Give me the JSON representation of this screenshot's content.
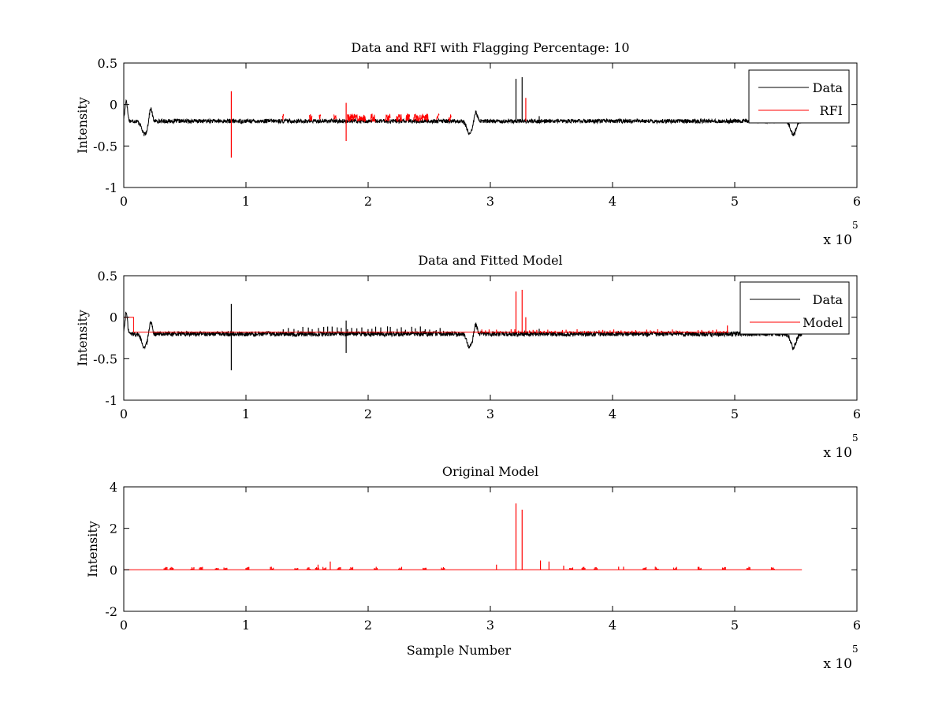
{
  "figure": {
    "background": "#ffffff",
    "colors": {
      "data": "#000000",
      "rfi": "#ff0000",
      "model": "#ff0000"
    }
  },
  "chart_data": [
    {
      "type": "line",
      "title": "Data and RFI with Flagging Percentage: 10",
      "xlabel": "",
      "ylabel": "Intensity",
      "xlim": [
        0,
        6
      ],
      "ylim": [
        -1,
        0.5
      ],
      "x_ticks": [
        "0",
        "1",
        "2",
        "3",
        "4",
        "5",
        "6"
      ],
      "y_ticks": [
        "0.5",
        "0",
        "-0.5",
        "-1"
      ],
      "x_exponent": {
        "base": "x 10",
        "power": "5"
      },
      "legend": {
        "placement": "top-right",
        "entries": [
          "Data",
          "RFI"
        ]
      },
      "grid": false,
      "series": [
        {
          "name": "Data",
          "color": "#000000",
          "baseline": -0.2,
          "noise": 0.025,
          "dips": [
            [
              0.17,
              -0.36
            ],
            [
              2.83,
              -0.35
            ],
            [
              5.48,
              -0.36
            ]
          ],
          "bumps": [
            [
              0.22,
              -0.04
            ],
            [
              2.88,
              -0.08
            ]
          ],
          "start_peak": [
            0.02,
            0.05
          ],
          "spikes": [
            [
              3.21,
              0.31
            ],
            [
              3.26,
              0.33
            ],
            [
              3.4,
              -0.14
            ]
          ],
          "x_end": 5.55
        },
        {
          "name": "RFI",
          "color": "#ff0000",
          "spikes": [
            [
              0.88,
              0.16,
              -0.64
            ],
            [
              1.82,
              0.02,
              -0.44
            ],
            [
              3.29,
              0.08,
              -0.2
            ]
          ],
          "segments": [
            [
              1.3,
              1.31
            ],
            [
              1.52,
              1.54
            ],
            [
              1.6,
              1.61
            ],
            [
              1.72,
              1.74
            ],
            [
              1.83,
              1.98
            ],
            [
              2.02,
              2.06
            ],
            [
              2.14,
              2.18
            ],
            [
              2.23,
              2.28
            ],
            [
              2.31,
              2.34
            ],
            [
              2.37,
              2.49
            ],
            [
              2.56,
              2.58
            ],
            [
              2.66,
              2.68
            ]
          ],
          "segment_level": -0.16
        }
      ]
    },
    {
      "type": "line",
      "title": "Data and Fitted Model",
      "xlabel": "",
      "ylabel": "Intensity",
      "xlim": [
        0,
        6
      ],
      "ylim": [
        -1,
        0.5
      ],
      "x_ticks": [
        "0",
        "1",
        "2",
        "3",
        "4",
        "5",
        "6"
      ],
      "y_ticks": [
        "0.5",
        "0",
        "-0.5",
        "-1"
      ],
      "x_exponent": {
        "base": "x 10",
        "power": "5"
      },
      "legend": {
        "placement": "top-right",
        "entries": [
          "Data",
          "Model"
        ]
      },
      "grid": false,
      "series": [
        {
          "name": "Data",
          "color": "#000000",
          "baseline": -0.2,
          "noise": 0.03,
          "dips": [
            [
              0.17,
              -0.36
            ],
            [
              2.83,
              -0.35
            ],
            [
              5.48,
              -0.36
            ]
          ],
          "bumps": [
            [
              0.22,
              -0.04
            ],
            [
              2.88,
              -0.08
            ]
          ],
          "start_peak": [
            0.02,
            0.05
          ],
          "spikes": [
            [
              0.88,
              0.16,
              -0.64
            ],
            [
              1.82,
              -0.04,
              -0.43
            ],
            [
              3.4,
              -0.14
            ]
          ],
          "x_end": 5.55
        },
        {
          "name": "Model",
          "color": "#ff0000",
          "baseline": -0.18,
          "step": [
            0.0,
            0.08,
            0.0
          ],
          "spikes": [
            [
              3.21,
              0.31
            ],
            [
              3.26,
              0.33
            ],
            [
              3.29,
              0.0
            ],
            [
              4.94,
              -0.1
            ]
          ],
          "x_end": 4.95
        }
      ]
    },
    {
      "type": "line",
      "title": "Original Model",
      "xlabel": "Sample Number",
      "ylabel": "Intensity",
      "xlim": [
        0,
        6
      ],
      "ylim": [
        -2,
        4
      ],
      "x_ticks": [
        "0",
        "1",
        "2",
        "3",
        "4",
        "5",
        "6"
      ],
      "y_ticks": [
        "4",
        "2",
        "0",
        "-2"
      ],
      "x_exponent": {
        "base": "x 10",
        "power": "5"
      },
      "legend": null,
      "grid": false,
      "series": [
        {
          "name": "",
          "color": "#ff0000",
          "baseline": 0,
          "x_end": 5.55,
          "spikes": [
            [
              3.21,
              3.2
            ],
            [
              3.26,
              2.9
            ],
            [
              3.41,
              0.45
            ],
            [
              3.48,
              0.4
            ],
            [
              1.69,
              0.4
            ],
            [
              1.59,
              0.25
            ],
            [
              3.05,
              0.25
            ],
            [
              3.6,
              0.2
            ],
            [
              4.05,
              0.15
            ],
            [
              4.09,
              0.15
            ]
          ],
          "clusters": [
            0.33,
            0.38,
            0.55,
            0.62,
            0.75,
            0.82,
            1.0,
            1.2,
            1.4,
            1.5,
            1.57,
            1.63,
            1.75,
            1.85,
            2.05,
            2.25,
            2.45,
            2.6,
            3.65,
            3.75,
            3.85,
            4.25,
            4.35,
            4.5,
            4.7,
            4.9,
            5.1,
            5.3
          ]
        }
      ]
    }
  ]
}
